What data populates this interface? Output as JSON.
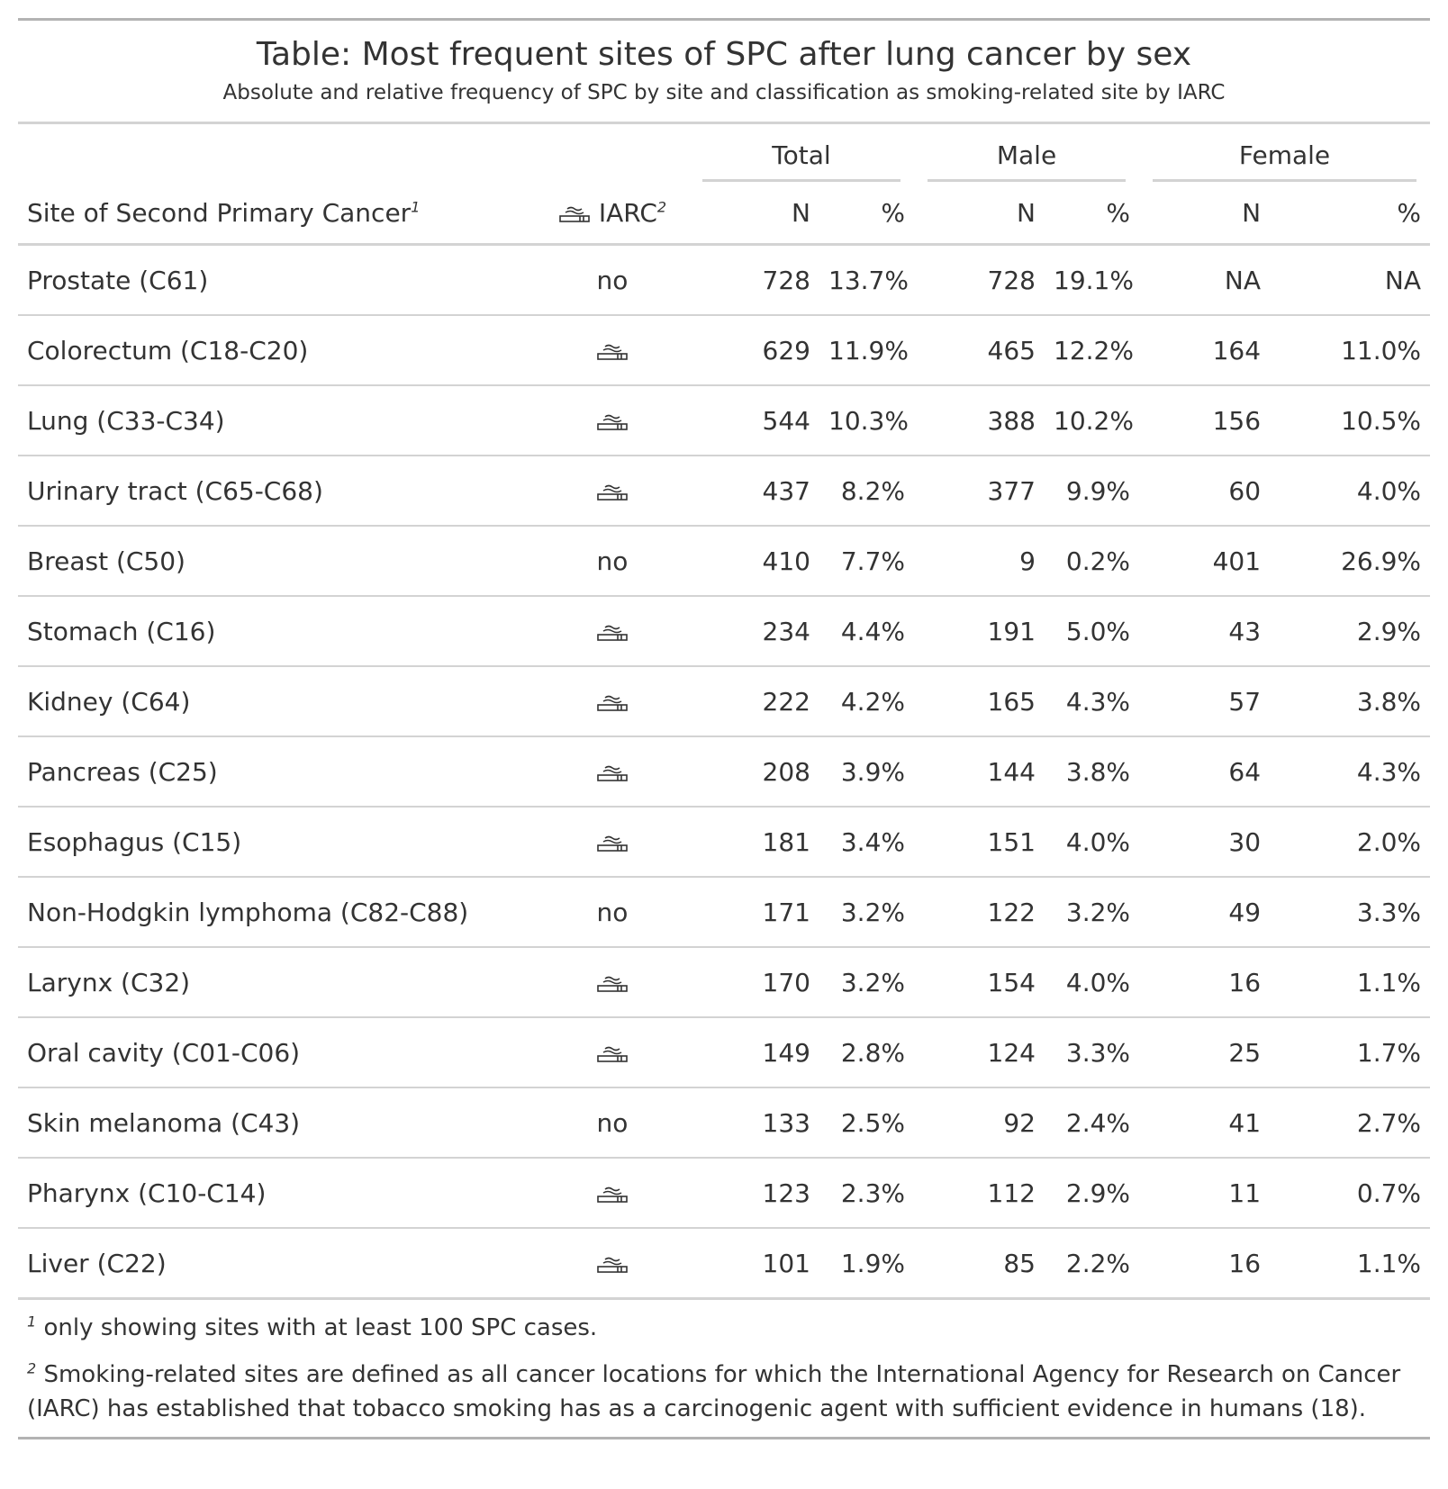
{
  "title": "Table: Most frequent sites of SPC after lung cancer by sex",
  "subtitle": "Absolute and relative frequency of SPC by site and classification as smoking-related site by IARC",
  "spanners": {
    "total": "Total",
    "male": "Male",
    "female": "Female"
  },
  "columns": {
    "site": "Site of Second Primary Cancer",
    "site_mark": "1",
    "iarc": "IARC",
    "iarc_mark": "2",
    "n": "N",
    "pct": "%"
  },
  "rows": [
    {
      "site": "Prostate (C61)",
      "iarc": "no",
      "total_n": "728",
      "total_pct": "13.7%",
      "male_n": "728",
      "male_pct": "19.1%",
      "female_n": "NA",
      "female_pct": "NA"
    },
    {
      "site": "Colorectum (C18-C20)",
      "iarc": "smoking-icon",
      "total_n": "629",
      "total_pct": "11.9%",
      "male_n": "465",
      "male_pct": "12.2%",
      "female_n": "164",
      "female_pct": "11.0%"
    },
    {
      "site": "Lung (C33-C34)",
      "iarc": "smoking-icon",
      "total_n": "544",
      "total_pct": "10.3%",
      "male_n": "388",
      "male_pct": "10.2%",
      "female_n": "156",
      "female_pct": "10.5%"
    },
    {
      "site": "Urinary tract (C65-C68)",
      "iarc": "smoking-icon",
      "total_n": "437",
      "total_pct": "8.2%",
      "male_n": "377",
      "male_pct": "9.9%",
      "female_n": "60",
      "female_pct": "4.0%"
    },
    {
      "site": "Breast (C50)",
      "iarc": "no",
      "total_n": "410",
      "total_pct": "7.7%",
      "male_n": "9",
      "male_pct": "0.2%",
      "female_n": "401",
      "female_pct": "26.9%"
    },
    {
      "site": "Stomach (C16)",
      "iarc": "smoking-icon",
      "total_n": "234",
      "total_pct": "4.4%",
      "male_n": "191",
      "male_pct": "5.0%",
      "female_n": "43",
      "female_pct": "2.9%"
    },
    {
      "site": "Kidney (C64)",
      "iarc": "smoking-icon",
      "total_n": "222",
      "total_pct": "4.2%",
      "male_n": "165",
      "male_pct": "4.3%",
      "female_n": "57",
      "female_pct": "3.8%"
    },
    {
      "site": "Pancreas (C25)",
      "iarc": "smoking-icon",
      "total_n": "208",
      "total_pct": "3.9%",
      "male_n": "144",
      "male_pct": "3.8%",
      "female_n": "64",
      "female_pct": "4.3%"
    },
    {
      "site": "Esophagus (C15)",
      "iarc": "smoking-icon",
      "total_n": "181",
      "total_pct": "3.4%",
      "male_n": "151",
      "male_pct": "4.0%",
      "female_n": "30",
      "female_pct": "2.0%"
    },
    {
      "site": "Non-Hodgkin lymphoma (C82-C88)",
      "iarc": "no",
      "total_n": "171",
      "total_pct": "3.2%",
      "male_n": "122",
      "male_pct": "3.2%",
      "female_n": "49",
      "female_pct": "3.3%"
    },
    {
      "site": "Larynx (C32)",
      "iarc": "smoking-icon",
      "total_n": "170",
      "total_pct": "3.2%",
      "male_n": "154",
      "male_pct": "4.0%",
      "female_n": "16",
      "female_pct": "1.1%"
    },
    {
      "site": "Oral cavity (C01-C06)",
      "iarc": "smoking-icon",
      "total_n": "149",
      "total_pct": "2.8%",
      "male_n": "124",
      "male_pct": "3.3%",
      "female_n": "25",
      "female_pct": "1.7%"
    },
    {
      "site": "Skin melanoma (C43)",
      "iarc": "no",
      "total_n": "133",
      "total_pct": "2.5%",
      "male_n": "92",
      "male_pct": "2.4%",
      "female_n": "41",
      "female_pct": "2.7%"
    },
    {
      "site": "Pharynx (C10-C14)",
      "iarc": "smoking-icon",
      "total_n": "123",
      "total_pct": "2.3%",
      "male_n": "112",
      "male_pct": "2.9%",
      "female_n": "11",
      "female_pct": "0.7%"
    },
    {
      "site": "Liver (C22)",
      "iarc": "smoking-icon",
      "total_n": "101",
      "total_pct": "1.9%",
      "male_n": "85",
      "male_pct": "2.2%",
      "female_n": "16",
      "female_pct": "1.1%"
    }
  ],
  "footnotes": [
    {
      "mark": "1",
      "text": "only showing sites with at least 100 SPC cases."
    },
    {
      "mark": "2",
      "text": "Smoking-related sites are defined as all cancer locations for which the International Agency for Research on Cancer (IARC) has established that tobacco smoking has as a carcinogenic agent with sufficient evidence in humans (18)."
    }
  ],
  "colors": {
    "rule_heavy": "#b3b3b3",
    "rule_light": "#d3d3d3",
    "text": "#333333"
  }
}
